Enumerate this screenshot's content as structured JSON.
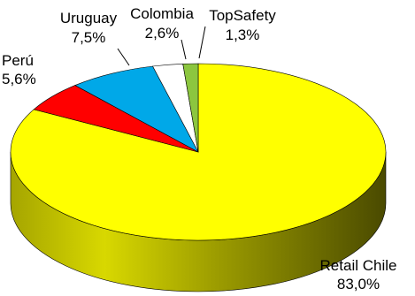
{
  "chart_data": {
    "type": "pie",
    "title": "",
    "style": "3d",
    "slices": [
      {
        "label": "Retail Chile",
        "value_text": "83,0%",
        "value": 83.0,
        "color": "#ffff00",
        "side_color": "#9a9a00"
      },
      {
        "label": "Perú",
        "value_text": "5,6%",
        "value": 5.6,
        "color": "#ff0000",
        "side_color": "#8a0000"
      },
      {
        "label": "Uruguay",
        "value_text": "7,5%",
        "value": 7.5,
        "color": "#00a8e8",
        "side_color": "#00608a"
      },
      {
        "label": "Colombia",
        "value_text": "2,6%",
        "value": 2.6,
        "color": "#ffffff",
        "side_color": "#bdbdbd"
      },
      {
        "label": "TopSafety",
        "value_text": "1,3%",
        "value": 1.3,
        "color": "#8cc63f",
        "side_color": "#4e7a1c"
      }
    ]
  }
}
